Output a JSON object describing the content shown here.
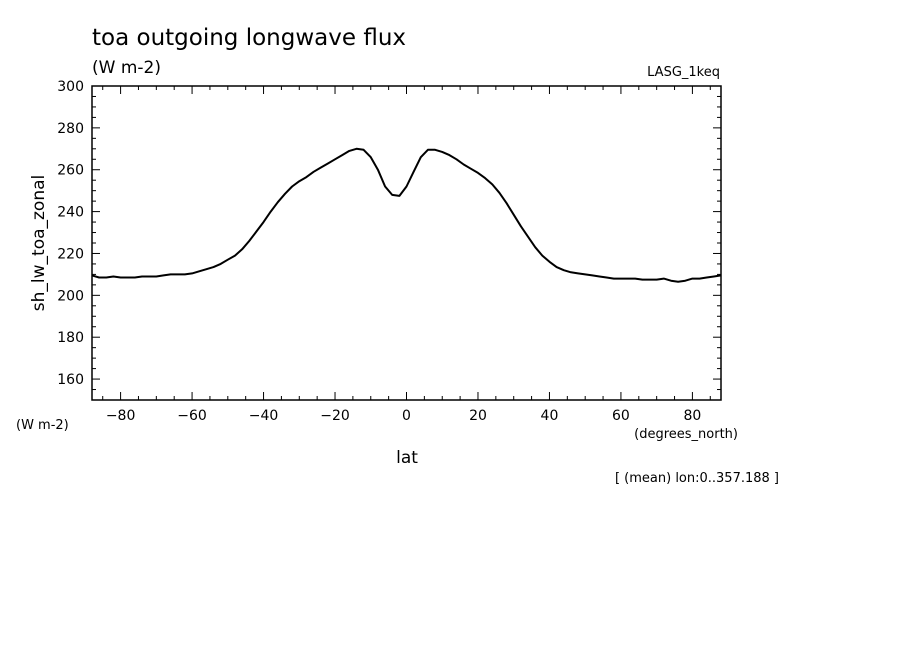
{
  "chart_data": {
    "type": "line",
    "title": "toa outgoing longwave flux",
    "units": "(W m-2)",
    "dataset": "LASG_1keq",
    "xlabel": "lat",
    "xunits": "(degrees_north)",
    "ylabel": "sh_lw_toa_zonal",
    "yunits": "(W m-2)",
    "footnote": "[ (mean) lon:0..357.188 ]",
    "xlim": [
      -88,
      88
    ],
    "ylim": [
      150,
      300
    ],
    "xticks": [
      -80,
      -60,
      -40,
      -20,
      0,
      20,
      40,
      60,
      80
    ],
    "yticks": [
      160,
      180,
      200,
      220,
      240,
      260,
      280,
      300
    ],
    "grid": false,
    "series": [
      {
        "x": [
          -88,
          -86,
          -84,
          -82,
          -80,
          -78,
          -76,
          -74,
          -72,
          -70,
          -68,
          -66,
          -64,
          -62,
          -60,
          -58,
          -56,
          -54,
          -52,
          -50,
          -48,
          -46,
          -44,
          -42,
          -40,
          -38,
          -36,
          -34,
          -32,
          -30,
          -28,
          -26,
          -24,
          -22,
          -20,
          -18,
          -16,
          -14,
          -12,
          -10,
          -8,
          -6,
          -4,
          -2,
          0,
          2,
          4,
          6,
          8,
          10,
          12,
          14,
          16,
          18,
          20,
          22,
          24,
          26,
          28,
          30,
          32,
          34,
          36,
          38,
          40,
          42,
          44,
          46,
          48,
          50,
          52,
          54,
          56,
          58,
          60,
          62,
          64,
          66,
          68,
          70,
          72,
          74,
          76,
          78,
          80,
          82,
          84,
          86,
          88
        ],
        "y": [
          209.5,
          208.5,
          208.5,
          209.0,
          208.5,
          208.5,
          208.5,
          209.0,
          209.0,
          209.0,
          209.5,
          210.0,
          210.0,
          210.0,
          210.5,
          211.5,
          212.5,
          213.5,
          215.0,
          217.0,
          219.0,
          222.0,
          226.0,
          230.5,
          235.0,
          240.0,
          244.5,
          248.5,
          252.0,
          254.5,
          256.5,
          259.0,
          261.0,
          263.0,
          265.0,
          267.0,
          269.0,
          270.0,
          269.5,
          266.0,
          260.0,
          252.0,
          248.0,
          247.5,
          252.0,
          259.0,
          266.0,
          269.5,
          269.5,
          268.5,
          267.0,
          265.0,
          262.5,
          260.5,
          258.5,
          256.0,
          253.0,
          249.0,
          244.0,
          238.5,
          233.0,
          228.0,
          223.0,
          219.0,
          216.0,
          213.5,
          212.0,
          211.0,
          210.5,
          210.0,
          209.5,
          209.0,
          208.5,
          208.0,
          208.0,
          208.0,
          208.0,
          207.5,
          207.5,
          207.5,
          208.0,
          207.0,
          206.5,
          207.0,
          208.0,
          208.0,
          208.5,
          209.0,
          209.5
        ]
      }
    ]
  }
}
